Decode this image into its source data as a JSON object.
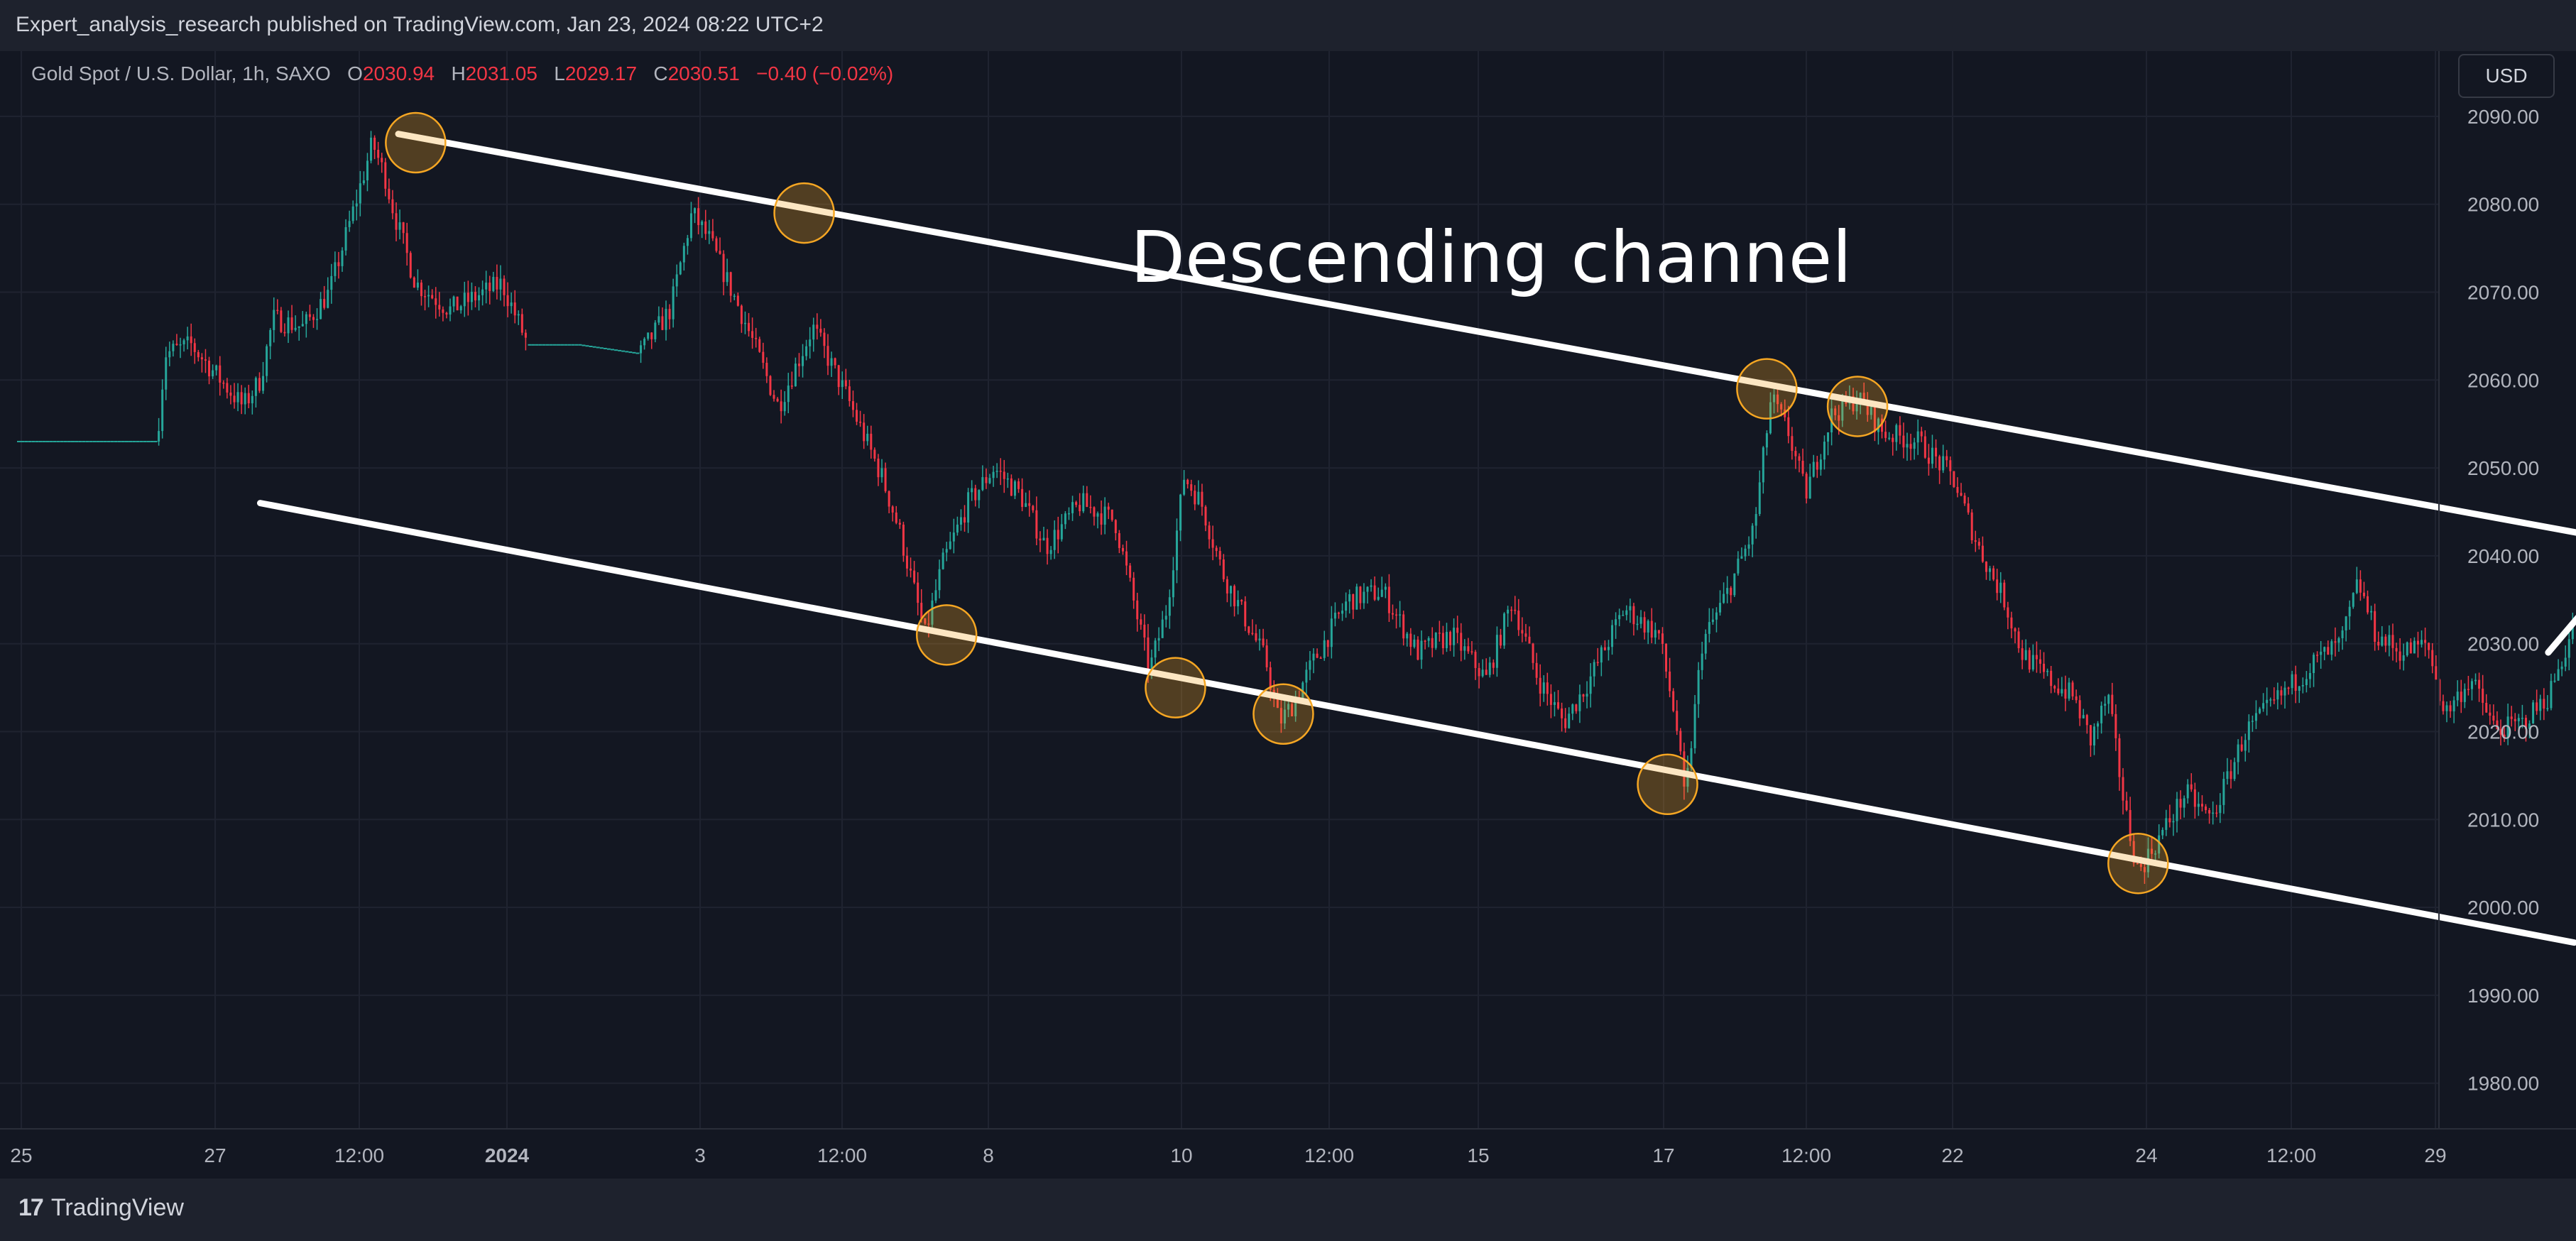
{
  "header": {
    "publish_line": "Expert_analysis_research published on TradingView.com, Jan 23, 2024 08:22 UTC+2"
  },
  "legend": {
    "symbol": "Gold Spot / U.S. Dollar, 1h, SAXO",
    "o_label": "O",
    "o_value": "2030.94",
    "h_label": "H",
    "h_value": "2031.05",
    "l_label": "L",
    "l_value": "2029.17",
    "c_label": "C",
    "c_value": "2030.51",
    "change": "−0.40 (−0.02%)"
  },
  "currency_button": "USD",
  "footer": {
    "logo": "17",
    "brand": "TradingView"
  },
  "colors": {
    "background": "#131722",
    "up": "#26a69a",
    "down": "#f23645",
    "grid": "#1f2330",
    "marker": "#f5a623",
    "annotation": "#ffffff"
  },
  "chart_data": {
    "type": "candlestick",
    "title": "Descending channel",
    "ylim": [
      1975,
      2095
    ],
    "y_ticks": [
      "2090.00",
      "2080.00",
      "2070.00",
      "2060.00",
      "2050.00",
      "2040.00",
      "2030.00",
      "2020.00",
      "2010.00",
      "2000.00",
      "1990.00",
      "1980.00"
    ],
    "x_ticks": [
      "25",
      "27",
      "12:00",
      "2024",
      "3",
      "12:00",
      "8",
      "10",
      "12:00",
      "15",
      "17",
      "12:00",
      "22",
      "24",
      "12:00",
      "29"
    ],
    "grid": true,
    "price_path": [
      [
        0,
        2053
      ],
      [
        0.5,
        2053
      ],
      [
        1.6,
        2053
      ],
      [
        1.7,
        2063
      ],
      [
        2.0,
        2064
      ],
      [
        2.6,
        2057
      ],
      [
        2.8,
        2060
      ],
      [
        2.95,
        2067
      ],
      [
        3.3,
        2066
      ],
      [
        3.6,
        2070
      ],
      [
        3.9,
        2080
      ],
      [
        4.1,
        2087
      ],
      [
        4.25,
        2083
      ],
      [
        4.35,
        2079
      ],
      [
        4.6,
        2071
      ],
      [
        5.0,
        2068
      ],
      [
        5.6,
        2071
      ],
      [
        5.9,
        2064
      ],
      [
        6.5,
        2064
      ],
      [
        7.2,
        2063
      ],
      [
        7.55,
        2068
      ],
      [
        7.8,
        2079
      ],
      [
        8.0,
        2076
      ],
      [
        8.4,
        2067
      ],
      [
        8.8,
        2057
      ],
      [
        9.2,
        2066
      ],
      [
        9.6,
        2058
      ],
      [
        10.0,
        2049
      ],
      [
        10.2,
        2043
      ],
      [
        10.5,
        2031
      ],
      [
        10.7,
        2039
      ],
      [
        11.0,
        2046
      ],
      [
        11.3,
        2050
      ],
      [
        11.6,
        2047
      ],
      [
        11.9,
        2041
      ],
      [
        12.3,
        2046
      ],
      [
        12.7,
        2044
      ],
      [
        13.1,
        2027
      ],
      [
        13.3,
        2034
      ],
      [
        13.5,
        2049
      ],
      [
        13.7,
        2046
      ],
      [
        13.95,
        2038
      ],
      [
        14.2,
        2033
      ],
      [
        14.45,
        2028
      ],
      [
        14.6,
        2021
      ],
      [
        14.75,
        2023
      ],
      [
        15.0,
        2028
      ],
      [
        15.4,
        2035
      ],
      [
        15.8,
        2036
      ],
      [
        16.2,
        2029
      ],
      [
        16.6,
        2031
      ],
      [
        17.0,
        2026
      ],
      [
        17.3,
        2035
      ],
      [
        17.6,
        2026
      ],
      [
        17.9,
        2021
      ],
      [
        18.2,
        2026
      ],
      [
        18.6,
        2034
      ],
      [
        19.0,
        2031
      ],
      [
        19.2,
        2021
      ],
      [
        19.3,
        2012
      ],
      [
        19.5,
        2030
      ],
      [
        19.8,
        2036
      ],
      [
        20.1,
        2043
      ],
      [
        20.3,
        2058
      ],
      [
        20.5,
        2054
      ],
      [
        20.7,
        2047
      ],
      [
        21.0,
        2056
      ],
      [
        21.3,
        2058
      ],
      [
        21.6,
        2054
      ],
      [
        22.0,
        2053
      ],
      [
        22.4,
        2049
      ],
      [
        22.7,
        2041
      ],
      [
        23.0,
        2035
      ],
      [
        23.2,
        2029
      ],
      [
        23.5,
        2026
      ],
      [
        23.8,
        2024
      ],
      [
        24.0,
        2019
      ],
      [
        24.2,
        2024
      ],
      [
        24.4,
        2011
      ],
      [
        24.55,
        2004
      ],
      [
        24.8,
        2008
      ],
      [
        25.1,
        2013
      ],
      [
        25.4,
        2010
      ],
      [
        25.8,
        2020
      ],
      [
        26.2,
        2024
      ],
      [
        26.6,
        2028
      ],
      [
        26.9,
        2030
      ],
      [
        27.1,
        2037
      ],
      [
        27.3,
        2031
      ],
      [
        27.6,
        2029
      ],
      [
        27.9,
        2030
      ],
      [
        28.1,
        2022
      ],
      [
        28.4,
        2026
      ],
      [
        28.7,
        2020
      ],
      [
        29.0,
        2021
      ],
      [
        29.3,
        2024
      ],
      [
        29.6,
        2032
      ]
    ],
    "channel": {
      "upper": [
        [
          4.4,
          2088
        ],
        [
          31.1,
          2040
        ]
      ],
      "lower": [
        [
          2.8,
          2046
        ],
        [
          29.6,
          1996
        ]
      ]
    },
    "touch_points": [
      [
        4.6,
        2087
      ],
      [
        9.1,
        2079
      ],
      [
        10.75,
        2031
      ],
      [
        13.4,
        2025
      ],
      [
        14.65,
        2022
      ],
      [
        19.1,
        2014
      ],
      [
        20.25,
        2059
      ],
      [
        21.3,
        2057
      ],
      [
        24.55,
        2005
      ]
    ],
    "forecast_arrow": [
      [
        29.3,
        2029
      ],
      [
        30.25,
        2040
      ],
      [
        31.85,
        2006
      ]
    ]
  }
}
